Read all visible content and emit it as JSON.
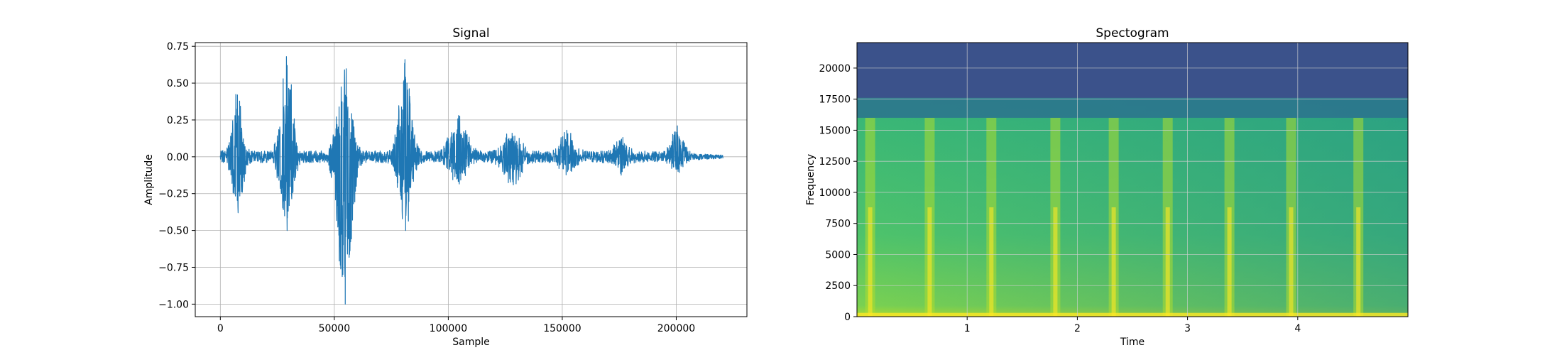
{
  "chart_data": [
    {
      "type": "line",
      "title": "Signal",
      "xlabel": "Sample",
      "ylabel": "Amplitude",
      "xlim": [
        -11000,
        231000
      ],
      "ylim": [
        -1.085,
        0.775
      ],
      "grid": true,
      "color": "#1f77b4",
      "x_ticks": [
        0,
        50000,
        100000,
        150000,
        200000
      ],
      "x_tick_labels": [
        "0",
        "50000",
        "100000",
        "150000",
        "200000"
      ],
      "y_ticks": [
        0.75,
        0.5,
        0.25,
        0.0,
        -0.25,
        -0.5,
        -0.75,
        -1.0
      ],
      "y_tick_labels": [
        "0.75",
        "0.50",
        "0.25",
        "0.00",
        "−0.25",
        "−0.50",
        "−0.75",
        "−1.00"
      ],
      "x_max_sample": 220500,
      "baseline_noise": 0.04,
      "bursts": [
        {
          "center": 7500,
          "width": 3000,
          "peak_high": 0.42,
          "peak_low": -0.38
        },
        {
          "center": 29000,
          "width": 3500,
          "peak_high": 0.68,
          "peak_low": -0.5
        },
        {
          "center": 54500,
          "width": 4000,
          "peak_high": 0.59,
          "peak_low": -1.0
        },
        {
          "center": 81000,
          "width": 3500,
          "peak_high": 0.66,
          "peak_low": -0.5
        },
        {
          "center": 104500,
          "width": 5000,
          "peak_high": 0.28,
          "peak_low": -0.17
        },
        {
          "center": 128000,
          "width": 5000,
          "peak_high": 0.16,
          "peak_low": -0.17
        },
        {
          "center": 152000,
          "width": 4000,
          "peak_high": 0.18,
          "peak_low": -0.1
        },
        {
          "center": 176000,
          "width": 4000,
          "peak_high": 0.12,
          "peak_low": -0.1
        },
        {
          "center": 200500,
          "width": 3500,
          "peak_high": 0.21,
          "peak_low": -0.1
        }
      ]
    },
    {
      "type": "heatmap",
      "title": "Spectogram",
      "xlabel": "Time",
      "ylabel": "Frequency",
      "xlim": [
        0.0,
        5.0
      ],
      "ylim": [
        0,
        22050
      ],
      "grid": true,
      "colormap": [
        "#3b528b",
        "#2c728e",
        "#21918c",
        "#28ae80",
        "#5ec962",
        "#addc30",
        "#fde725"
      ],
      "x_ticks": [
        1,
        2,
        3,
        4
      ],
      "x_tick_labels": [
        "1",
        "2",
        "3",
        "4"
      ],
      "y_ticks": [
        0,
        2500,
        5000,
        7500,
        10000,
        12500,
        15000,
        17500,
        20000
      ],
      "y_tick_labels": [
        "0",
        "2500",
        "5000",
        "7500",
        "10000",
        "12500",
        "15000",
        "17500",
        "20000"
      ],
      "cutoff_frequency": 16000,
      "dark_band_frequency": 17600,
      "energy_columns": [
        0.12,
        0.66,
        1.22,
        1.8,
        2.33,
        2.82,
        3.38,
        3.94,
        4.55
      ]
    }
  ]
}
